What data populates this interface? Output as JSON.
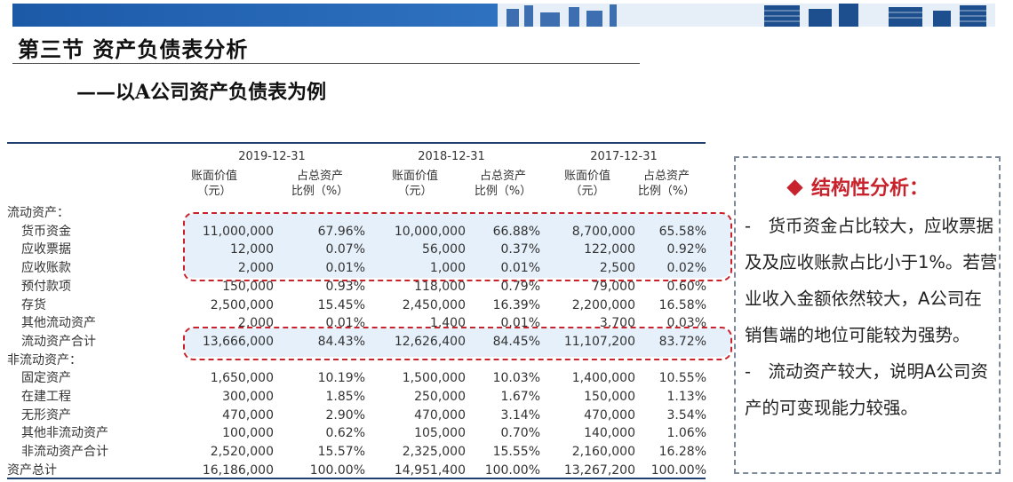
{
  "header": {
    "title": "第三节 资产负债表分析",
    "subtitle": "——以A公司资产负债表为例"
  },
  "table": {
    "years": [
      "2019-12-31",
      "2018-12-31",
      "2017-12-31"
    ],
    "col_value_label": [
      "账面价值",
      "（元）"
    ],
    "col_ratio_label": [
      "占总资产",
      "比例（%）"
    ],
    "rows": [
      {
        "label": "流动资产：",
        "indent": false,
        "values": [
          "",
          "",
          "",
          "",
          "",
          ""
        ]
      },
      {
        "label": "货币资金",
        "indent": true,
        "values": [
          "11,000,000",
          "67.96%",
          "10,000,000",
          "66.88%",
          "8,700,000",
          "65.58%"
        ]
      },
      {
        "label": "应收票据",
        "indent": true,
        "values": [
          "12,000",
          "0.07%",
          "56,000",
          "0.37%",
          "122,000",
          "0.92%"
        ]
      },
      {
        "label": "应收账款",
        "indent": true,
        "values": [
          "2,000",
          "0.01%",
          "1,000",
          "0.01%",
          "2,500",
          "0.02%"
        ]
      },
      {
        "label": "预付款项",
        "indent": true,
        "values": [
          "150,000",
          "0.93%",
          "118,000",
          "0.79%",
          "79,000",
          "0.60%"
        ]
      },
      {
        "label": "存货",
        "indent": true,
        "values": [
          "2,500,000",
          "15.45%",
          "2,450,000",
          "16.39%",
          "2,200,000",
          "16.58%"
        ]
      },
      {
        "label": "其他流动资产",
        "indent": true,
        "values": [
          "2,000",
          "0.01%",
          "1,400",
          "0.01%",
          "3,700",
          "0.03%"
        ]
      },
      {
        "label": "流动资产合计",
        "indent": true,
        "values": [
          "13,666,000",
          "84.43%",
          "12,626,400",
          "84.45%",
          "11,107,200",
          "83.72%"
        ]
      },
      {
        "label": "非流动资产：",
        "indent": false,
        "values": [
          "",
          "",
          "",
          "",
          "",
          ""
        ]
      },
      {
        "label": "固定资产",
        "indent": true,
        "values": [
          "1,650,000",
          "10.19%",
          "1,500,000",
          "10.03%",
          "1,400,000",
          "10.55%"
        ]
      },
      {
        "label": "在建工程",
        "indent": true,
        "values": [
          "300,000",
          "1.85%",
          "250,000",
          "1.67%",
          "150,000",
          "1.13%"
        ]
      },
      {
        "label": "无形资产",
        "indent": true,
        "values": [
          "470,000",
          "2.90%",
          "470,000",
          "3.14%",
          "470,000",
          "3.54%"
        ]
      },
      {
        "label": "其他非流动资产",
        "indent": true,
        "values": [
          "100,000",
          "0.62%",
          "105,000",
          "0.70%",
          "140,000",
          "1.06%"
        ]
      },
      {
        "label": "非流动资产合计",
        "indent": true,
        "values": [
          "2,520,000",
          "15.57%",
          "2,325,000",
          "15.55%",
          "2,160,000",
          "16.28%"
        ]
      },
      {
        "label": "资产总计",
        "indent": false,
        "values": [
          "16,186,000",
          "100.00%",
          "14,951,400",
          "100.00%",
          "13,267,200",
          "100.00%"
        ]
      }
    ]
  },
  "analysis": {
    "title": "结构性分析：",
    "paragraph1": "-　货币资金占比较大，应收票据及及应收账款占比小于1%。若营业收入金额依然较大，A公司在销售端的地位可能较为强势。",
    "paragraph2": "-　流动资产较大，说明A公司资产的可变现能力较强。"
  },
  "colors": {
    "accent": "#c8232c",
    "banner": "#1c5aa8",
    "rule": "#1f3f6e"
  }
}
